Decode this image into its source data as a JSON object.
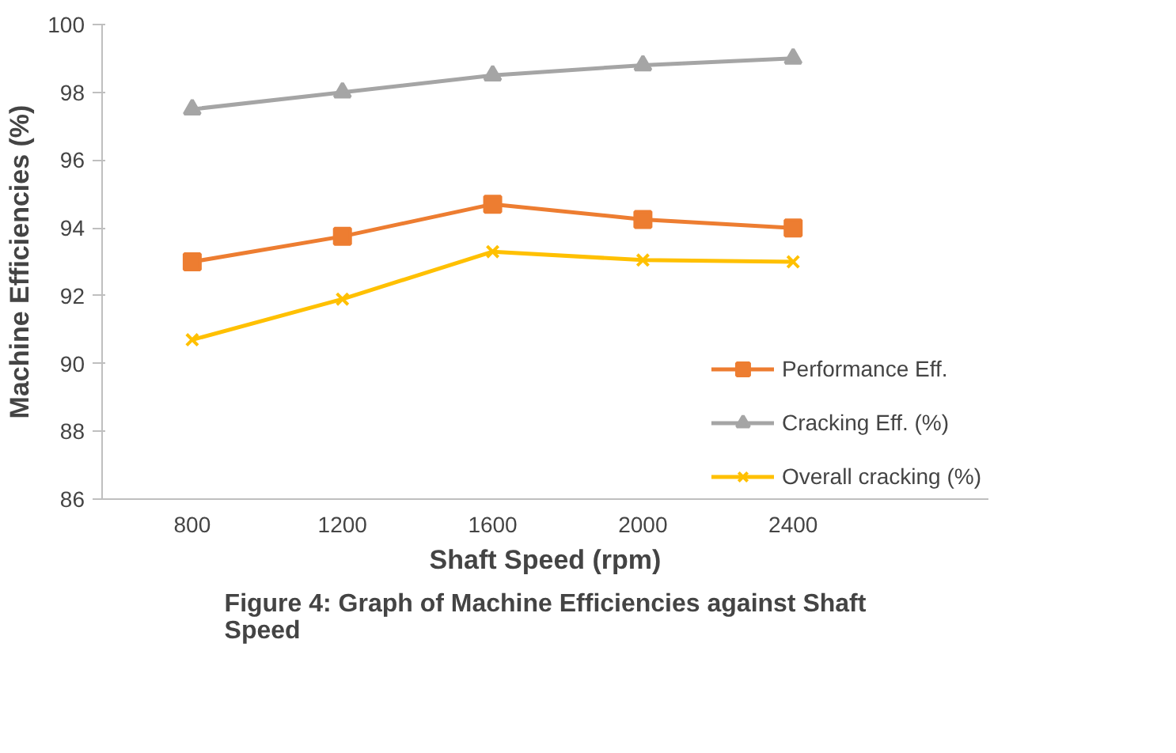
{
  "chart_data": {
    "type": "line",
    "xlabel": "Shaft Speed (rpm)",
    "ylabel": "Machine Efficiencies (%)",
    "categories": [
      "800",
      "1200",
      "1600",
      "2000",
      "2400"
    ],
    "series": [
      {
        "name": "Performance Eff.",
        "color": "#ed7d31",
        "marker": "square",
        "values": [
          93.0,
          93.75,
          94.7,
          94.25,
          94.0
        ]
      },
      {
        "name": "Cracking Eff. (%)",
        "color": "#a5a5a5",
        "marker": "triangle",
        "values": [
          97.5,
          98.0,
          98.5,
          98.8,
          99.0
        ]
      },
      {
        "name": "Overall cracking (%)",
        "color": "#ffc000",
        "marker": "cross",
        "values": [
          90.7,
          91.9,
          93.3,
          93.05,
          93.0
        ]
      }
    ],
    "ylim": [
      86,
      100
    ],
    "yticks": [
      86,
      88,
      90,
      92,
      94,
      96,
      98,
      100
    ],
    "grid": false,
    "legend": "bottom right",
    "line_style": "solid",
    "annotations": [
      "Figure 4: Graph of Machine Efficiencies against Shaft Speed"
    ]
  }
}
